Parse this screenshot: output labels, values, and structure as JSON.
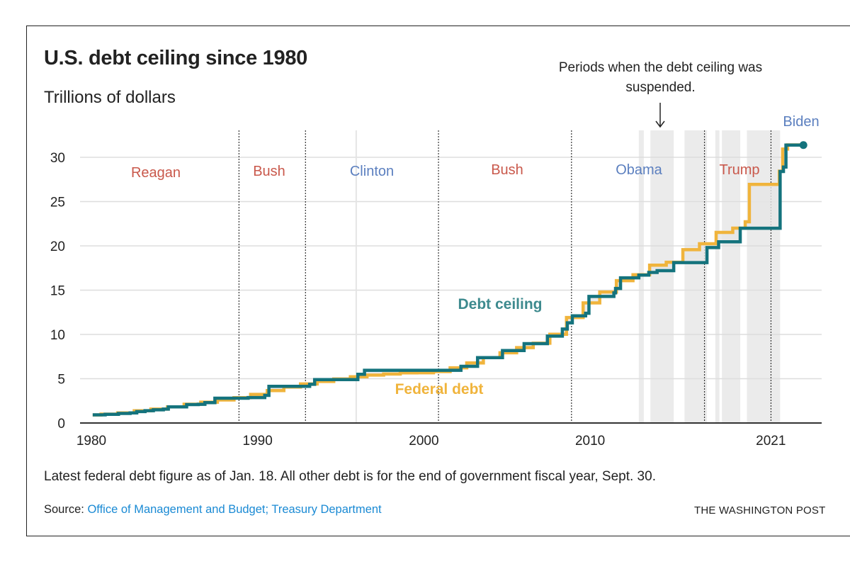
{
  "title": "U.S. debt ceiling since 1980",
  "subtitle": "Trillions of dollars",
  "annotation": "Periods when the debt ceiling was suspended.",
  "note": "Latest federal debt figure as of Jan. 18. All other debt is for the end of government fiscal year, Sept. 30.",
  "source_label": "Source:",
  "source_text": "Office of Management and Budget; Treasury Department",
  "credit": "THE WASHINGTON POST",
  "chart_data": {
    "type": "line",
    "step": true,
    "title": "U.S. debt ceiling since 1980",
    "ylabel": "Trillions of dollars",
    "xlim": [
      1980,
      2023
    ],
    "ylim": [
      0,
      30
    ],
    "yticks": [
      0,
      5,
      10,
      15,
      20,
      25,
      30
    ],
    "xticks": [
      1980,
      1990,
      2000,
      2010,
      2021
    ],
    "grid": true,
    "colors": {
      "ceiling": "#14737d",
      "debt": "#f0b43c",
      "gap_fill": "#e6e6e6",
      "suspended": "#ebebeb",
      "republican": "#c9584b",
      "democrat": "#5b7fbf"
    },
    "presidents": [
      {
        "name": "Reagan",
        "start": 1981.05,
        "party": "R"
      },
      {
        "name": "Bush",
        "start": 1989.05,
        "party": "R"
      },
      {
        "name": "Clinton",
        "start": 1993.05,
        "party": "D"
      },
      {
        "name": "Bush",
        "start": 2001.05,
        "party": "R"
      },
      {
        "name": "Obama",
        "start": 2009.05,
        "party": "D"
      },
      {
        "name": "Trump",
        "start": 2017.05,
        "party": "R"
      },
      {
        "name": "Biden",
        "start": 2021.05,
        "party": "D"
      }
    ],
    "suspended_periods": [
      [
        2013.1,
        2013.4
      ],
      [
        2013.8,
        2015.2
      ],
      [
        2015.85,
        2017.2
      ],
      [
        2017.7,
        2017.95
      ],
      [
        2018.1,
        2019.2
      ],
      [
        2019.6,
        2021.6
      ]
    ],
    "series": [
      {
        "name": "Debt ceiling",
        "x": [
          1980.25,
          1981.0,
          1981.8,
          1982.5,
          1982.9,
          1983.4,
          1983.9,
          1984.5,
          1984.8,
          1985.9,
          1986.6,
          1987.0,
          1987.6,
          1989.6,
          1990.6,
          1990.85,
          1993.3,
          1993.6,
          1996.2,
          1996.6,
          2002.4,
          2003.4,
          2004.9,
          2006.2,
          2007.6,
          2008.5,
          2008.8,
          2009.1,
          2009.9,
          2010.1,
          2011.6,
          2011.7,
          2012.0,
          2013.1,
          2013.7,
          2014.2,
          2015.2,
          2017.2,
          2017.9,
          2018.0,
          2019.2,
          2021.6,
          2021.8,
          2021.95,
          2023.0
        ],
        "values": [
          0.925,
          0.985,
          1.079,
          1.143,
          1.29,
          1.389,
          1.49,
          1.573,
          1.824,
          2.079,
          2.111,
          2.3,
          2.8,
          2.87,
          3.123,
          4.145,
          4.37,
          4.9,
          5.5,
          5.95,
          6.4,
          7.384,
          8.184,
          8.965,
          9.815,
          10.615,
          11.315,
          12.104,
          12.394,
          14.294,
          14.694,
          15.194,
          16.394,
          16.699,
          17.0,
          17.2,
          18.113,
          19.809,
          20.456,
          20.456,
          21.988,
          28.401,
          28.9,
          31.381,
          31.381
        ]
      },
      {
        "name": "Federal debt",
        "x": [
          1980.25,
          1980.75,
          1981.75,
          1982.75,
          1983.75,
          1984.75,
          1985.75,
          1986.75,
          1987.75,
          1988.75,
          1989.75,
          1990.75,
          1991.75,
          1992.75,
          1993.75,
          1994.75,
          1995.75,
          1996.75,
          1997.75,
          1998.75,
          1999.75,
          2000.75,
          2001.75,
          2002.75,
          2003.75,
          2004.75,
          2005.75,
          2006.75,
          2007.75,
          2008.75,
          2009.75,
          2010.75,
          2011.75,
          2012.75,
          2013.75,
          2014.75,
          2015.75,
          2016.75,
          2017.75,
          2018.75,
          2019.5,
          2019.75,
          2021.55,
          2021.75,
          2022.05,
          2023.0
        ],
        "values": [
          0.908,
          0.998,
          1.142,
          1.377,
          1.572,
          1.823,
          2.125,
          2.35,
          2.602,
          2.857,
          3.233,
          3.665,
          4.065,
          4.411,
          4.693,
          4.974,
          5.225,
          5.413,
          5.526,
          5.656,
          5.674,
          5.807,
          6.228,
          6.783,
          7.379,
          7.933,
          8.507,
          9.008,
          10.025,
          11.91,
          13.562,
          14.79,
          16.066,
          16.738,
          17.824,
          18.151,
          19.573,
          20.245,
          21.516,
          22.0,
          22.719,
          26.945,
          28.428,
          30.93,
          31.4,
          31.4
        ]
      }
    ]
  }
}
